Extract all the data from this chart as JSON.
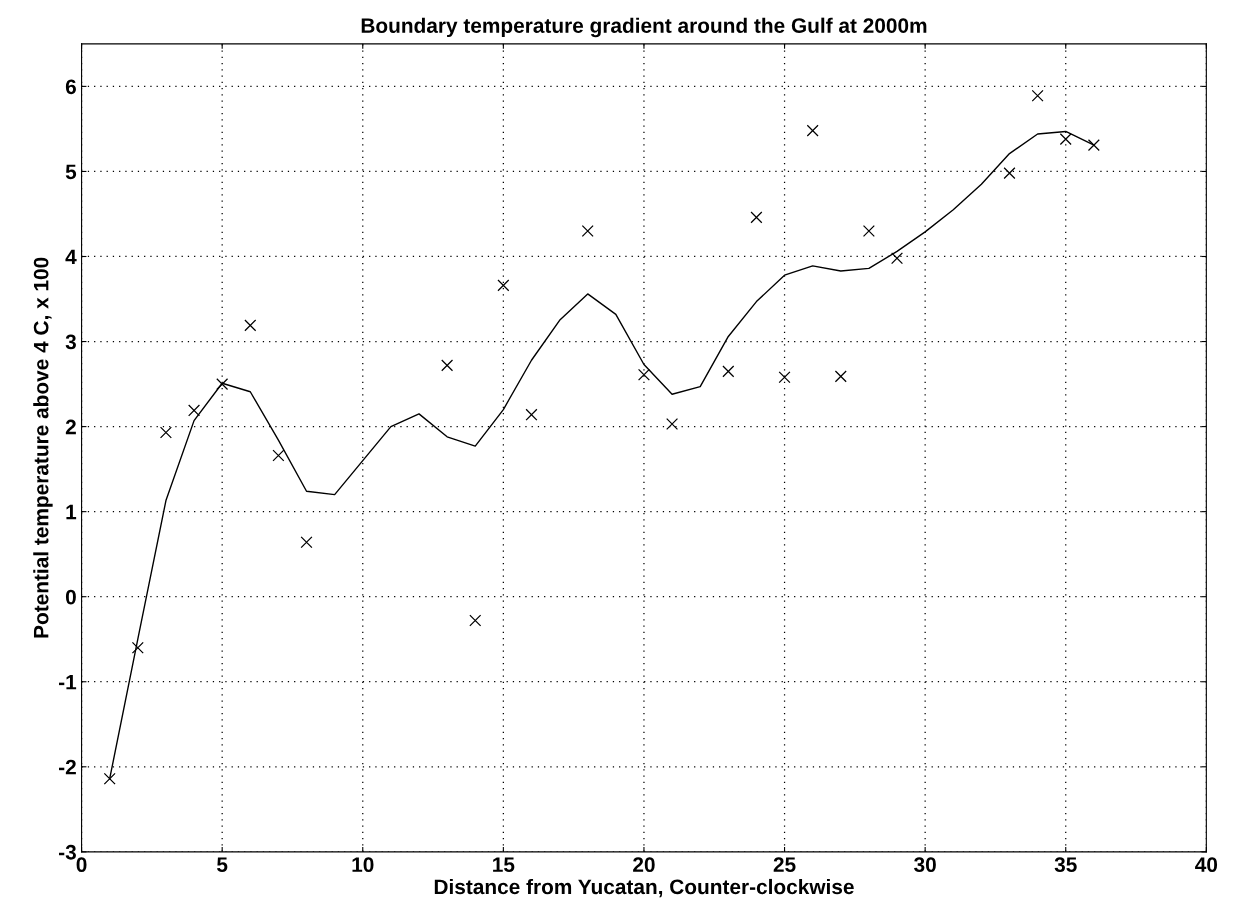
{
  "chart_data": {
    "type": "scatter",
    "title": "Boundary temperature gradient around the Gulf at 2000m",
    "xlabel": "Distance from Yucatan, Counter-clockwise",
    "ylabel": "Potential temperature above 4 C, x 100",
    "xlim": [
      0,
      40
    ],
    "xticks": [
      0,
      5,
      10,
      15,
      20,
      25,
      30,
      35,
      40
    ],
    "ylim": [
      -3,
      6.5
    ],
    "yticks": [
      -3,
      -2,
      -1,
      0,
      1,
      2,
      3,
      4,
      5,
      6
    ],
    "grid": true,
    "legend": false,
    "series": [
      {
        "color": "#000000",
        "marker": "cross",
        "x": [
          1,
          2,
          3,
          4,
          5,
          6,
          7,
          8,
          13,
          14,
          15,
          16,
          18,
          20,
          21,
          23,
          24,
          25,
          26,
          27,
          28,
          29,
          33,
          34,
          35,
          36
        ],
        "values": [
          -2.14,
          -0.6,
          1.93,
          2.19,
          2.5,
          3.19,
          1.66,
          0.64,
          2.72,
          -0.28,
          3.66,
          2.14,
          4.3,
          2.61,
          2.03,
          2.65,
          4.46,
          2.58,
          5.48,
          2.59,
          4.3,
          3.98,
          4.98,
          5.89,
          5.38,
          5.31
        ]
      },
      {
        "type": "line",
        "color": "#000000",
        "marker": "none",
        "line_style": "solid",
        "x": [
          1,
          2,
          3,
          4,
          5,
          6,
          7,
          8,
          9,
          10,
          11,
          12,
          13,
          14,
          15,
          16,
          17,
          18,
          19,
          20,
          21,
          22,
          23,
          24,
          25,
          26,
          27,
          28,
          29,
          30,
          31,
          32,
          33,
          34,
          35,
          36
        ],
        "values": [
          -2.14,
          -0.5,
          1.13,
          2.07,
          2.51,
          2.41,
          1.84,
          1.24,
          1.2,
          1.6,
          2.0,
          2.15,
          1.88,
          1.77,
          2.2,
          2.78,
          3.25,
          3.56,
          3.32,
          2.73,
          2.38,
          2.47,
          3.06,
          3.47,
          3.78,
          3.89,
          3.83,
          3.86,
          4.06,
          4.29,
          4.55,
          4.85,
          5.21,
          5.44,
          5.47,
          5.31
        ]
      }
    ]
  }
}
